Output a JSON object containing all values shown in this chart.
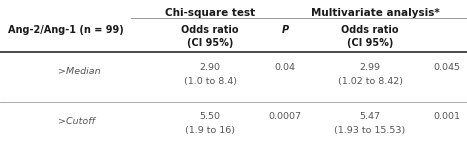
{
  "bg_color": "#ffffff",
  "text_color": "#555555",
  "header_color": "#1a1a1a",
  "line_color": "#888888",
  "group_header_chi": "Chi-square test",
  "group_header_mv": "Multivariate analysis*",
  "col_header_left": "Ang-2/Ang-1 (n = 99)",
  "col_header_chi_or": "Odds ratio\n(CI 95%)",
  "col_header_chi_p": "P",
  "col_header_mv_or": "Odds ratio\n(CI 95%)",
  "rows": [
    {
      "label": ">Median",
      "chi_or": "2.90",
      "chi_ci": "(1.0 to 8.4)",
      "chi_p": "0.04",
      "mv_or": "2.99",
      "mv_ci": "(1.02 to 8.42)",
      "mv_p": "0.045"
    },
    {
      "label": ">Cutoff",
      "chi_or": "5.50",
      "chi_ci": "(1.9 to 16)",
      "chi_p": "0.0007",
      "mv_or": "5.47",
      "mv_ci": "(1.93 to 15.53)",
      "mv_p": "0.001"
    }
  ],
  "figw": 4.67,
  "figh": 1.6,
  "dpi": 100
}
